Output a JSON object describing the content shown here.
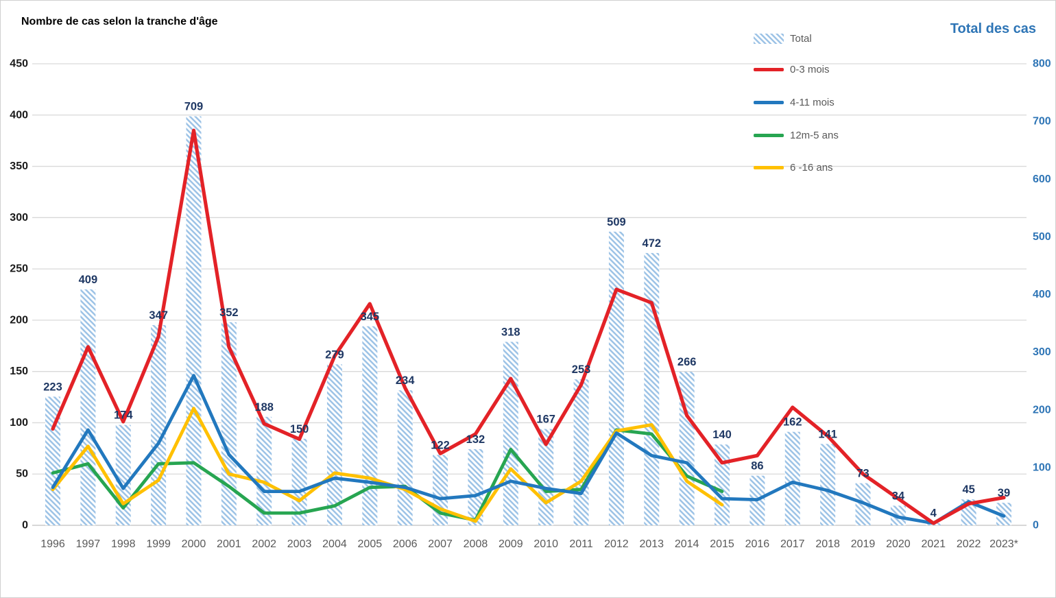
{
  "title": "Nombre de cas selon la tranche d'âge",
  "right_axis_title": "Total des cas",
  "colors": {
    "bar_hatch": "#9DC3E6",
    "bar_label": "#1F3864",
    "left_tick": "#1a1a1a",
    "right_tick": "#2E75B6",
    "x_label": "#595959",
    "gridline": "#D9D9D9",
    "baseline": "#BFBFBF",
    "legend_text": "#595959"
  },
  "legend": {
    "items": [
      {
        "label": "Total",
        "type": "hatch",
        "color": "#9DC3E6"
      },
      {
        "label": "0-3 mois",
        "type": "line",
        "color": "#E32227"
      },
      {
        "label": "4-11 mois",
        "type": "line",
        "color": "#2278BE"
      },
      {
        "label": "12m-5 ans",
        "type": "line",
        "color": "#27A551"
      },
      {
        "label": "6 -16 ans",
        "type": "line",
        "color": "#FFC000"
      }
    ]
  },
  "chart_data": {
    "type": "combo-bar-line",
    "categories": [
      "1996",
      "1997",
      "1998",
      "1999",
      "2000",
      "2001",
      "2002",
      "2003",
      "2004",
      "2005",
      "2006",
      "2007",
      "2008",
      "2009",
      "2010",
      "2011",
      "2012",
      "2013",
      "2014",
      "2015",
      "2016",
      "2017",
      "2018",
      "2019",
      "2020",
      "2021",
      "2022",
      "2023*"
    ],
    "bars": {
      "name": "Total",
      "axis": "right",
      "color": "#9DC3E6",
      "pattern": "diagonal-hatch",
      "values": [
        223,
        409,
        174,
        347,
        709,
        352,
        188,
        150,
        279,
        345,
        234,
        122,
        132,
        318,
        167,
        253,
        509,
        472,
        266,
        140,
        86,
        162,
        141,
        73,
        34,
        4,
        45,
        39
      ]
    },
    "series": [
      {
        "name": "0-3 mois",
        "axis": "left",
        "color": "#E32227",
        "width": 5.2,
        "values": [
          94,
          174,
          101,
          184,
          385,
          174,
          99,
          84,
          165,
          216,
          134,
          70,
          89,
          143,
          79,
          137,
          230,
          217,
          107,
          61,
          68,
          115,
          87,
          50,
          26,
          2,
          21,
          27
        ]
      },
      {
        "name": "12m-5 ans",
        "axis": "left",
        "color": "#27A551",
        "width": 4.8,
        "values": [
          51,
          60,
          17,
          60,
          61,
          38,
          12,
          12,
          19,
          37,
          38,
          12,
          5,
          74,
          33,
          35,
          93,
          89,
          48,
          33,
          null,
          null,
          null,
          null,
          null,
          null,
          null,
          null
        ]
      },
      {
        "name": "6 -16 ans",
        "axis": "left",
        "color": "#FFC000",
        "width": 4.8,
        "values": [
          35,
          77,
          21,
          44,
          114,
          50,
          42,
          24,
          51,
          46,
          35,
          16,
          4,
          55,
          22,
          43,
          92,
          98,
          43,
          20,
          null,
          null,
          null,
          null,
          null,
          null,
          null,
          null
        ]
      },
      {
        "name": "4-11 mois",
        "axis": "left",
        "color": "#2278BE",
        "width": 4.8,
        "values": [
          37,
          93,
          36,
          80,
          146,
          69,
          33,
          33,
          46,
          42,
          37,
          26,
          29,
          43,
          36,
          31,
          90,
          68,
          61,
          26,
          25,
          42,
          34,
          22,
          8,
          2,
          23,
          9
        ]
      }
    ],
    "line_draw_order_note": "green, yellow, blue, red on top",
    "left_axis": {
      "min": 0,
      "max": 450,
      "step": 50
    },
    "right_axis": {
      "min": 0,
      "max": 800,
      "step": 100,
      "title": "Total des cas"
    },
    "grid": true,
    "legend_position": "top-right"
  }
}
